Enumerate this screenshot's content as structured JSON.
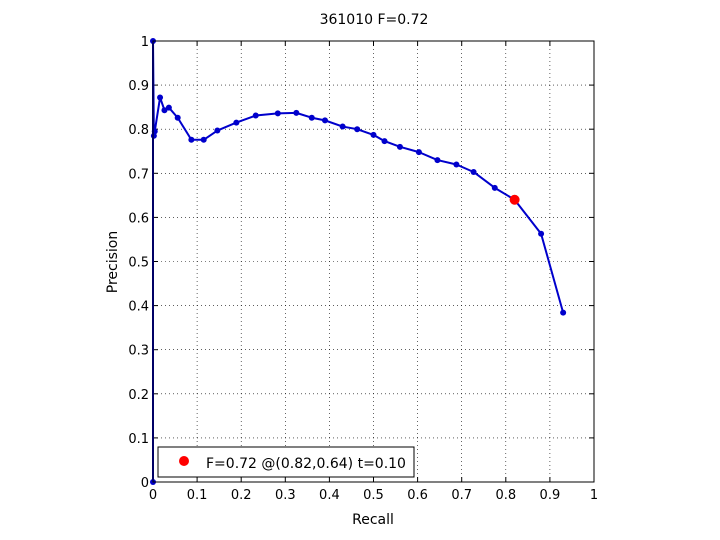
{
  "chart_data": {
    "type": "line",
    "title": "361010 F=0.72",
    "xlabel": "Recall",
    "ylabel": "Precision",
    "xlim": [
      0,
      1
    ],
    "ylim": [
      0,
      1
    ],
    "xticks": [
      0,
      0.1,
      0.2,
      0.3,
      0.4,
      0.5,
      0.6,
      0.7,
      0.8,
      0.9,
      1
    ],
    "xtick_labels": [
      "0",
      "0.1",
      "0.2",
      "0.3",
      "0.4",
      "0.5",
      "0.6",
      "0.7",
      "0.8",
      "0.9",
      "1"
    ],
    "yticks": [
      0,
      0.1,
      0.2,
      0.3,
      0.4,
      0.5,
      0.6,
      0.7,
      0.8,
      0.9,
      1
    ],
    "ytick_labels": [
      "0",
      "0.1",
      "0.2",
      "0.3",
      "0.4",
      "0.5",
      "0.6",
      "0.7",
      "0.8",
      "0.9",
      "1"
    ],
    "grid": true,
    "series": [
      {
        "color": "#0000cc",
        "points": [
          [
            0.0,
            0.0
          ],
          [
            0.0,
            1.0
          ],
          [
            0.002,
            0.785
          ],
          [
            0.004,
            0.795
          ],
          [
            0.016,
            0.872
          ],
          [
            0.026,
            0.843
          ],
          [
            0.036,
            0.849
          ],
          [
            0.056,
            0.826
          ],
          [
            0.087,
            0.776
          ],
          [
            0.115,
            0.776
          ],
          [
            0.146,
            0.797
          ],
          [
            0.189,
            0.815
          ],
          [
            0.233,
            0.831
          ],
          [
            0.283,
            0.836
          ],
          [
            0.325,
            0.837
          ],
          [
            0.36,
            0.826
          ],
          [
            0.39,
            0.82
          ],
          [
            0.43,
            0.806
          ],
          [
            0.463,
            0.8
          ],
          [
            0.5,
            0.787
          ],
          [
            0.525,
            0.773
          ],
          [
            0.56,
            0.76
          ],
          [
            0.603,
            0.748
          ],
          [
            0.645,
            0.73
          ],
          [
            0.688,
            0.72
          ],
          [
            0.727,
            0.703
          ],
          [
            0.775,
            0.667
          ],
          [
            0.82,
            0.64
          ],
          [
            0.88,
            0.563
          ],
          [
            0.93,
            0.384
          ]
        ]
      }
    ],
    "highlight": {
      "x": 0.82,
      "y": 0.64,
      "color": "#ff0000"
    },
    "legend": {
      "position": "bottom-left",
      "text": "F=0.72 @(0.82,0.64) t=0.10",
      "marker_color": "#ff0000"
    }
  }
}
